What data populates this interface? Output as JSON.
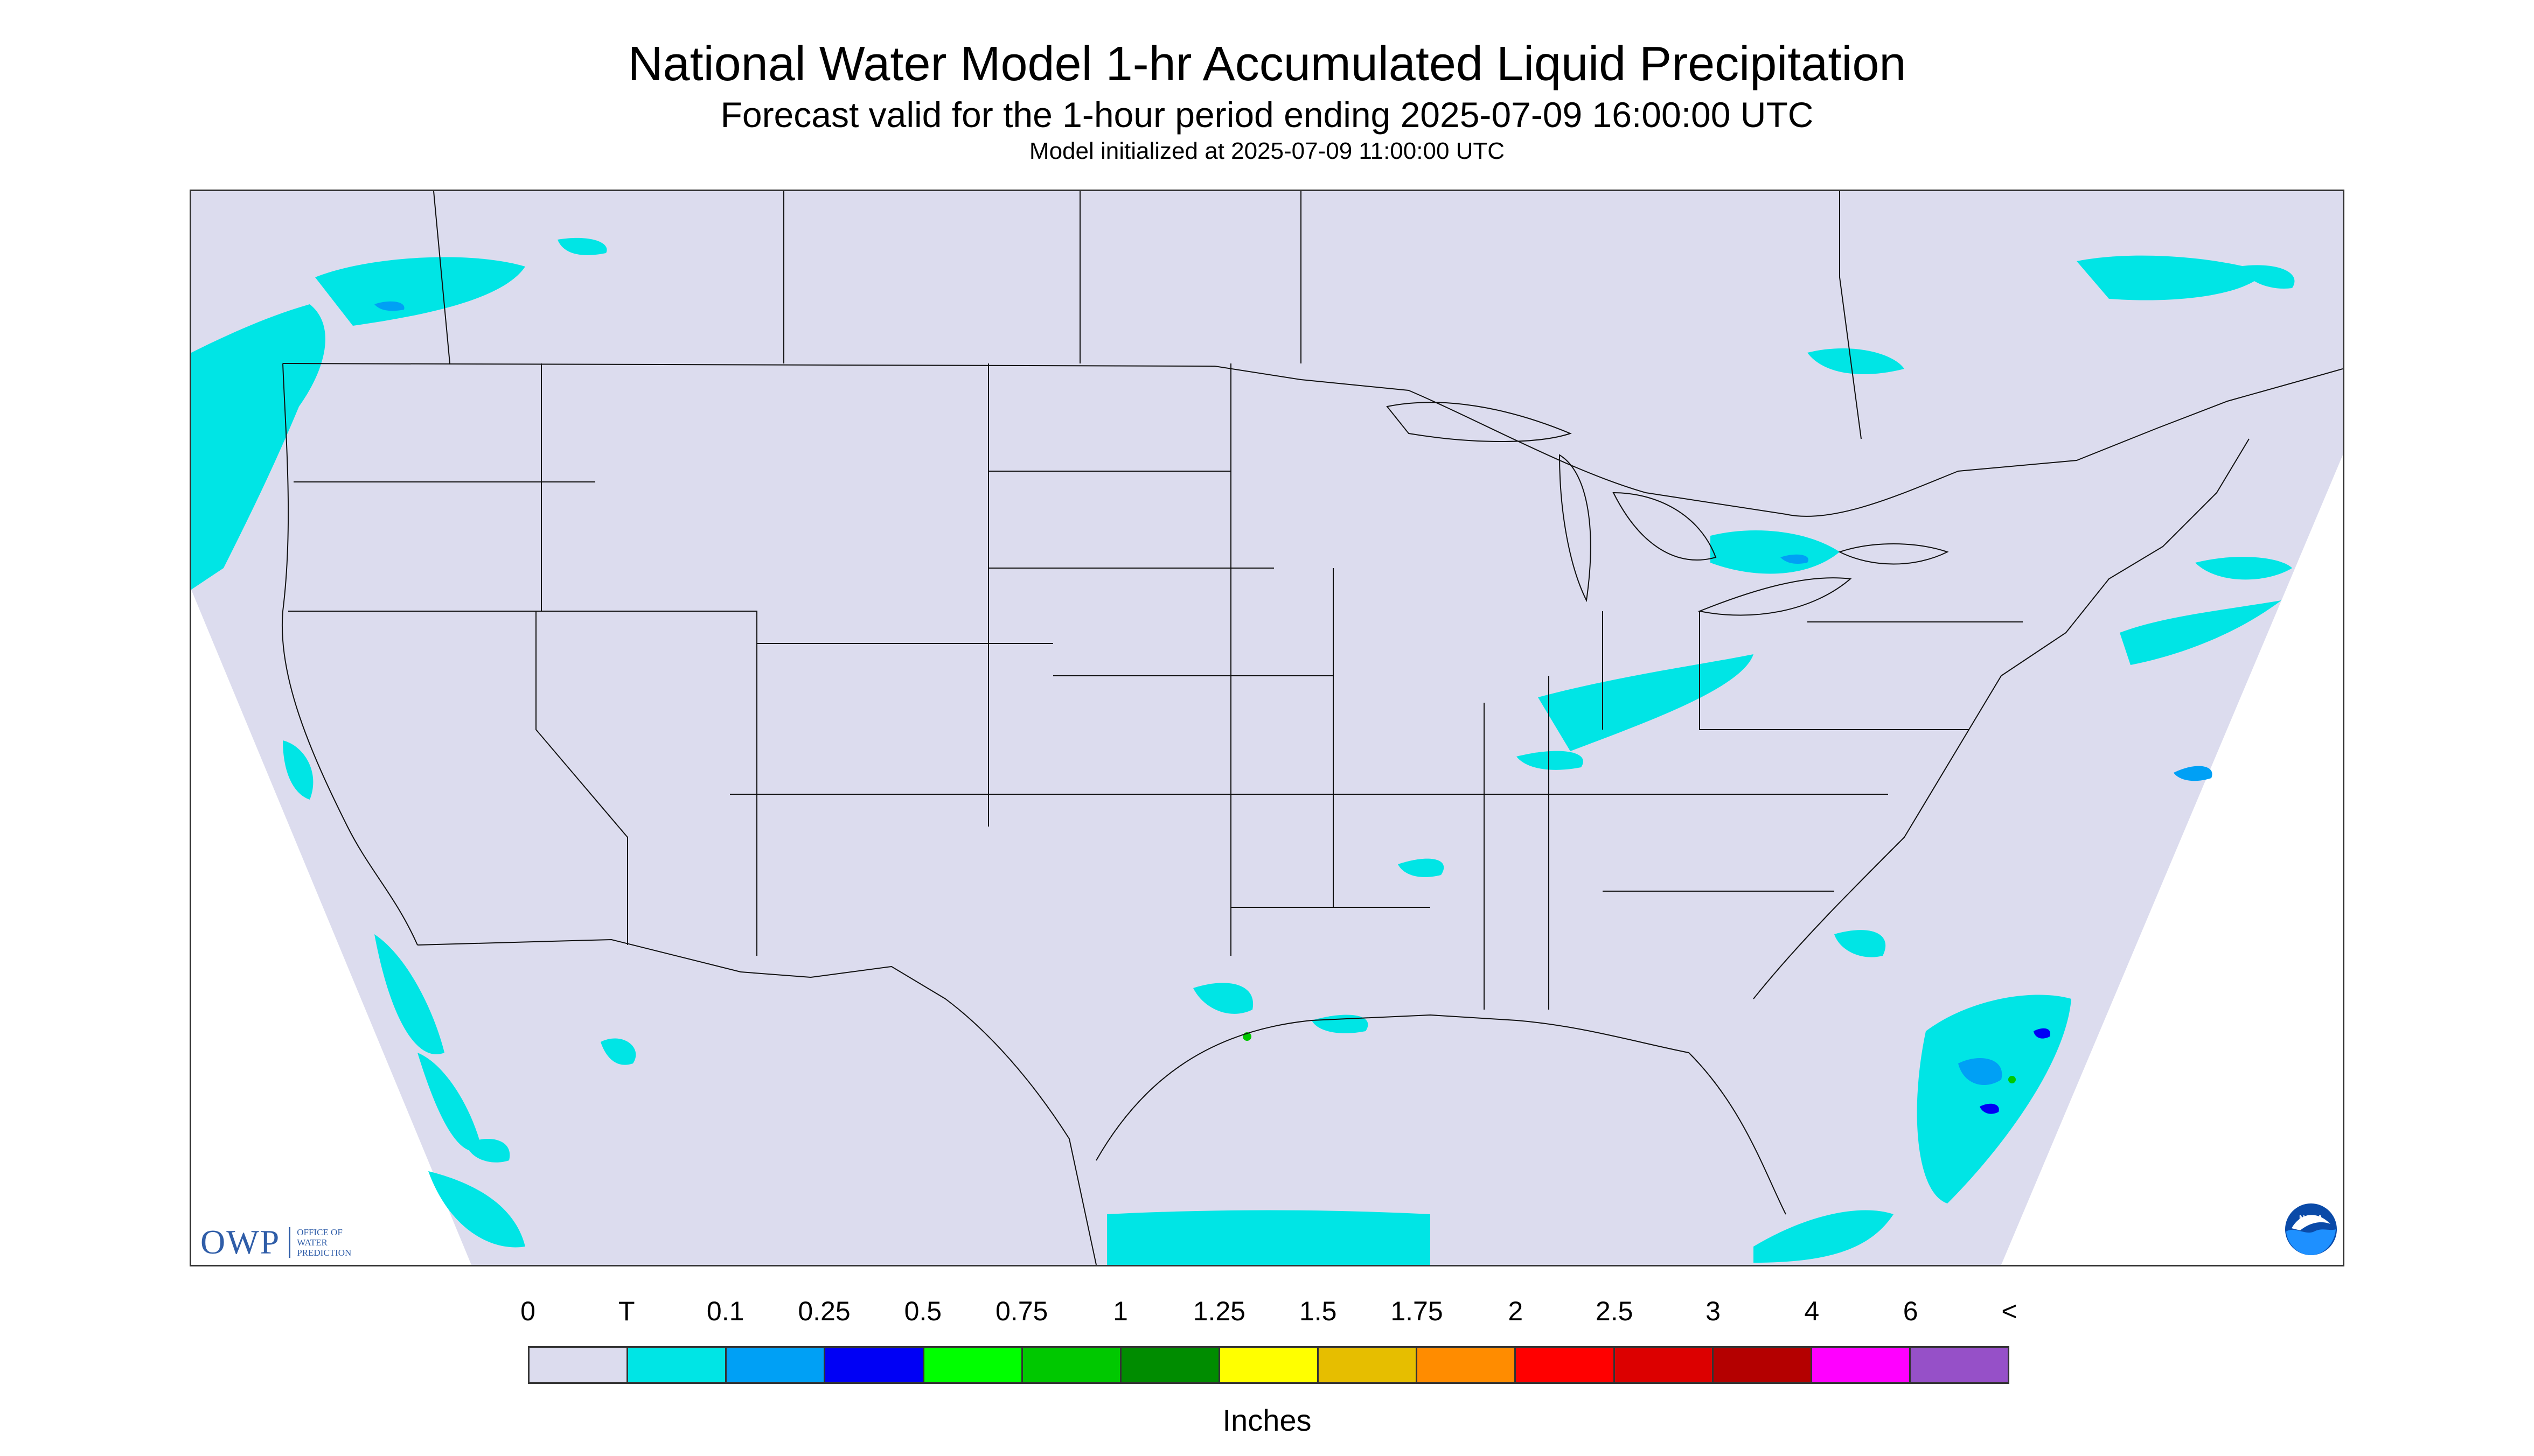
{
  "header": {
    "title": "National Water Model 1-hr Accumulated Liquid Precipitation",
    "subtitle": "Forecast valid for the 1-hour period ending 2025-07-09 16:00:00 UTC",
    "initialized": "Model initialized at 2025-07-09 11:00:00 UTC"
  },
  "map": {
    "background_color": "#dcdcee",
    "boundary_color": "#111111"
  },
  "logos": {
    "owp_mark": "OWP",
    "owp_lines": [
      "OFFICE OF",
      "WATER",
      "PREDICTION"
    ],
    "noaa_text": "NOAA",
    "noaa_icon": "noaa-logo-icon"
  },
  "legend": {
    "units": "Inches",
    "tick_labels": [
      "0",
      "T",
      "0.1",
      "0.25",
      "0.5",
      "0.75",
      "1",
      "1.25",
      "1.5",
      "1.75",
      "2",
      "2.5",
      "3",
      "4",
      "6",
      "<"
    ],
    "colors": [
      "#dcdcee",
      "#00e5e5",
      "#00a0f5",
      "#0000f5",
      "#00ff00",
      "#00c800",
      "#008c00",
      "#ffff00",
      "#e6be00",
      "#ff8c00",
      "#ff0000",
      "#dc0000",
      "#b40000",
      "#ff00ff",
      "#9650c8"
    ]
  }
}
